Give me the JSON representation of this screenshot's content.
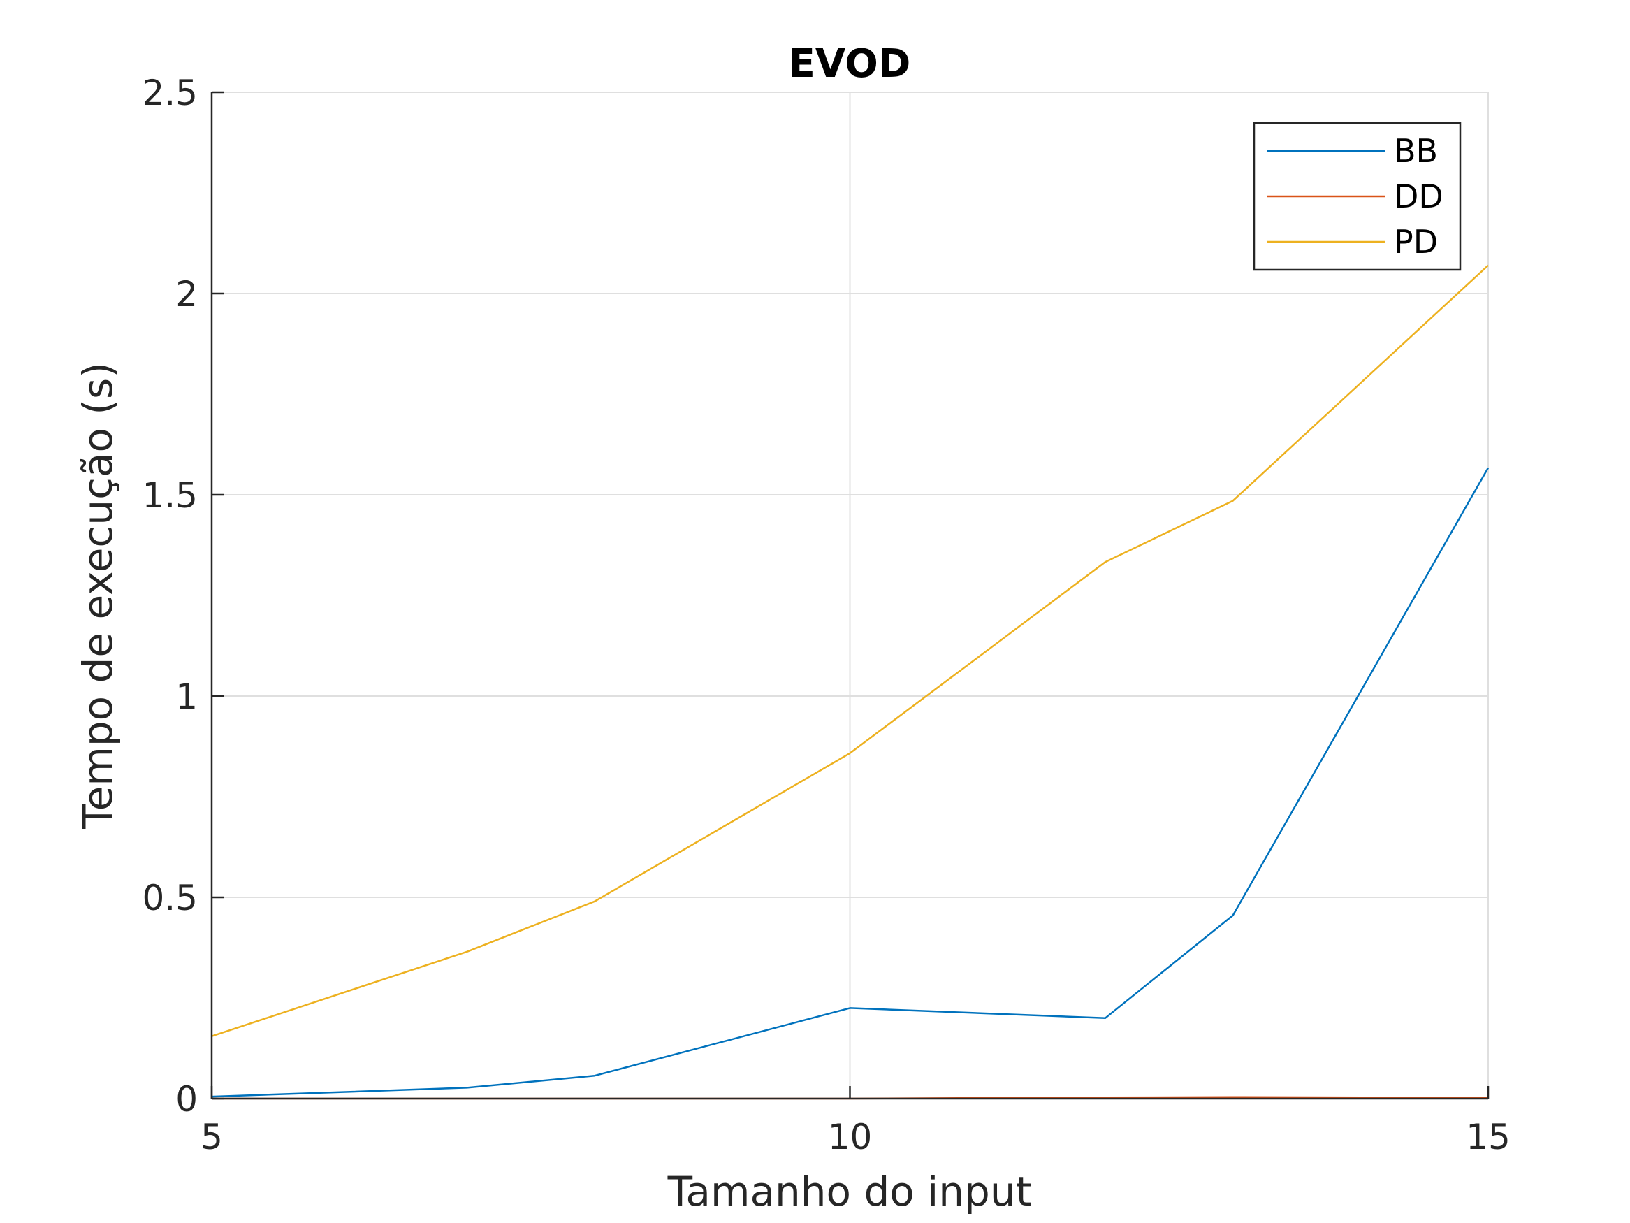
{
  "chart_data": {
    "type": "line",
    "title": "EVOD",
    "xlabel": "Tamanho do input",
    "ylabel": "Tempo de execução (s)",
    "xlim": [
      5,
      15
    ],
    "ylim": [
      0,
      2.5
    ],
    "x_ticks": [
      5,
      10,
      15
    ],
    "x_tick_labels": [
      "5",
      "10",
      "15"
    ],
    "y_ticks": [
      0,
      0.5,
      1,
      1.5,
      2,
      2.5
    ],
    "y_tick_labels": [
      "0",
      "0.5",
      "1",
      "1.5",
      "2",
      "2.5"
    ],
    "grid": true,
    "legend_position": "top-right",
    "x": [
      5,
      7,
      8,
      10,
      12,
      13,
      15
    ],
    "series": [
      {
        "name": "BB",
        "color": "#0072BD",
        "values": [
          0.005,
          0.027,
          0.057,
          0.225,
          0.2,
          0.455,
          1.567
        ]
      },
      {
        "name": "DD",
        "color": "#D95319",
        "values": [
          0.0,
          0.0,
          0.0,
          0.0,
          0.003,
          0.004,
          0.002
        ]
      },
      {
        "name": "PD",
        "color": "#EDB120",
        "values": [
          0.155,
          0.365,
          0.49,
          0.858,
          1.333,
          1.485,
          2.07
        ]
      }
    ]
  }
}
